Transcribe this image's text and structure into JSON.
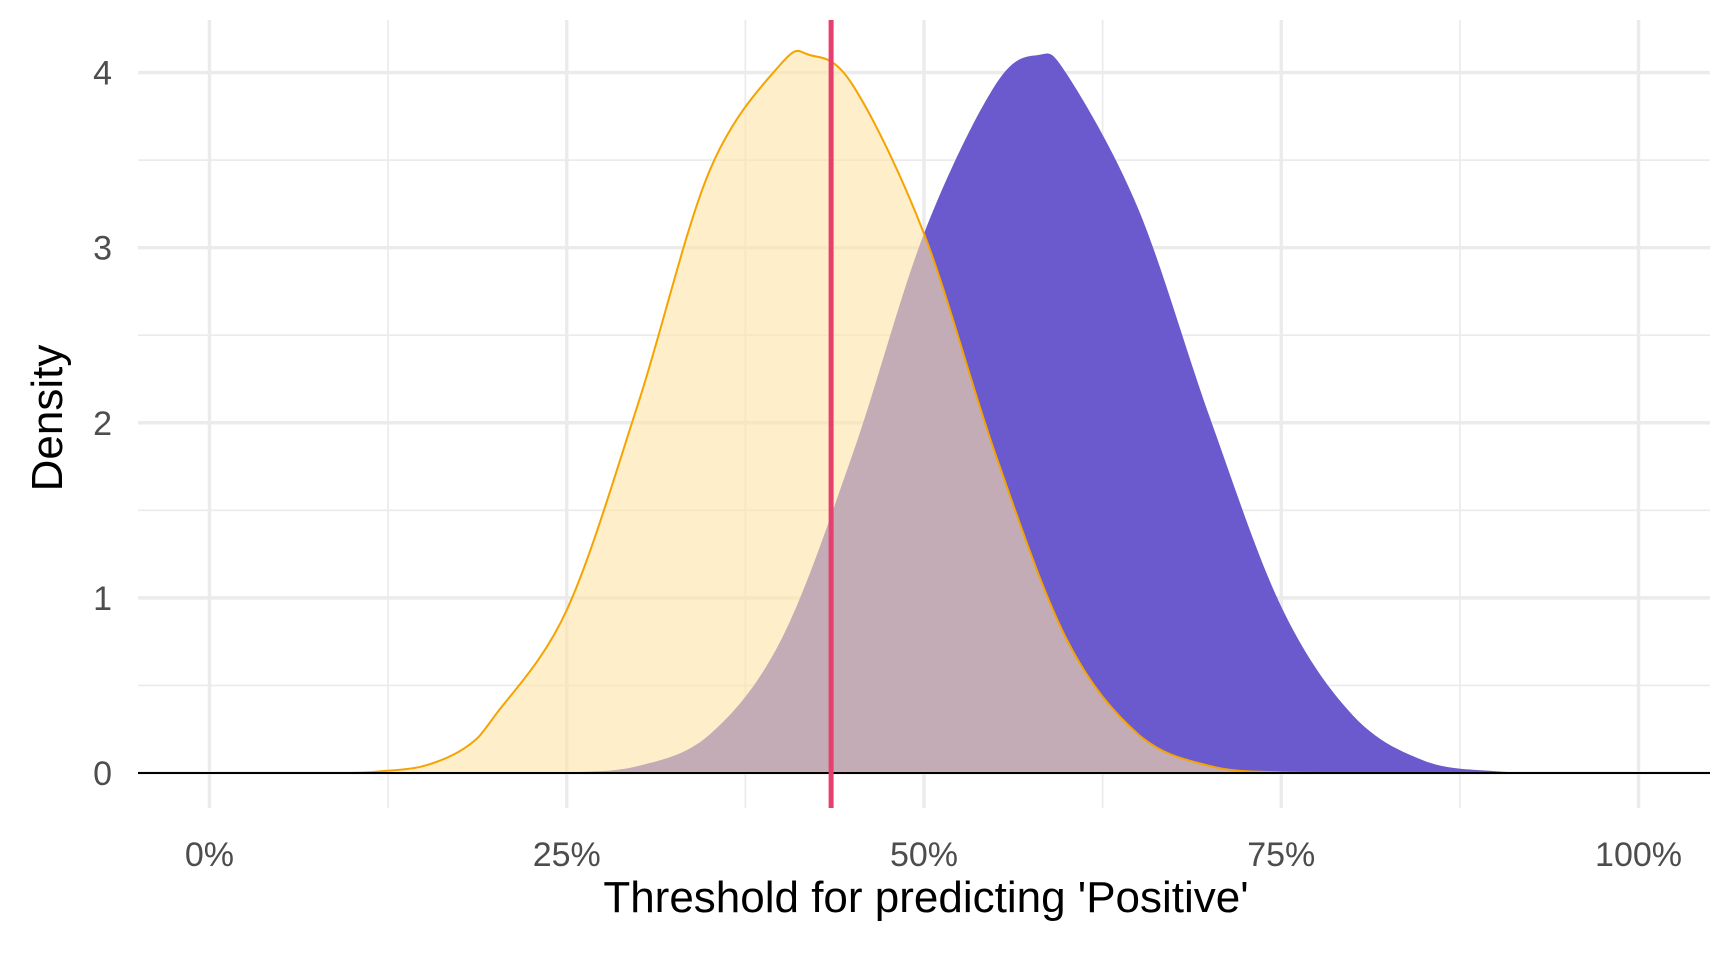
{
  "chart_data": {
    "type": "area",
    "xlabel": "Threshold for predicting 'Positive'",
    "ylabel": "Density",
    "xlim": [
      -0.05,
      1.05
    ],
    "ylim": [
      -0.2,
      4.3
    ],
    "x_ticks": [
      0,
      0.25,
      0.5,
      0.75,
      1.0
    ],
    "x_tick_labels": [
      "0%",
      "25%",
      "50%",
      "75%",
      "100%"
    ],
    "y_ticks": [
      0,
      1,
      2,
      3,
      4
    ],
    "y_tick_labels": [
      "0",
      "1",
      "2",
      "3",
      "4"
    ],
    "grid": true,
    "baseline_y": 0,
    "threshold_x": 0.435,
    "colors": {
      "grid": "#ebebeb",
      "baseline": "#000000",
      "threshold_line": "#e8406e",
      "text": "#4d4d4d"
    },
    "series": [
      {
        "fill": "#6a5acd",
        "stroke": "none",
        "opacity": 1,
        "x": [
          0.0,
          0.05,
          0.1,
          0.15,
          0.2,
          0.25,
          0.3,
          0.35,
          0.4,
          0.45,
          0.5,
          0.55,
          0.58,
          0.6,
          0.65,
          0.7,
          0.75,
          0.8,
          0.85,
          0.9,
          0.95,
          1.0
        ],
        "values": [
          0.0,
          0.0,
          0.0,
          0.0,
          0.0,
          0.003,
          0.04,
          0.22,
          0.76,
          1.82,
          3.08,
          3.93,
          4.1,
          3.99,
          3.22,
          2.03,
          0.95,
          0.33,
          0.07,
          0.01,
          0.0,
          0.0
        ]
      },
      {
        "fill": "#ffe3a6",
        "stroke": "#f5a300",
        "opacity": 0.6,
        "x": [
          0.0,
          0.05,
          0.1,
          0.12,
          0.15,
          0.18,
          0.2,
          0.25,
          0.3,
          0.35,
          0.4,
          0.42,
          0.45,
          0.5,
          0.55,
          0.6,
          0.65,
          0.7,
          0.75,
          0.8,
          0.85,
          0.9,
          0.95,
          1.0
        ],
        "values": [
          0.0,
          0.0,
          0.0,
          0.01,
          0.04,
          0.15,
          0.33,
          0.93,
          2.11,
          3.44,
          4.05,
          4.1,
          3.93,
          3.08,
          1.82,
          0.76,
          0.22,
          0.04,
          0.003,
          0.0,
          0.0,
          0.0,
          0.0,
          0.0
        ]
      }
    ]
  }
}
